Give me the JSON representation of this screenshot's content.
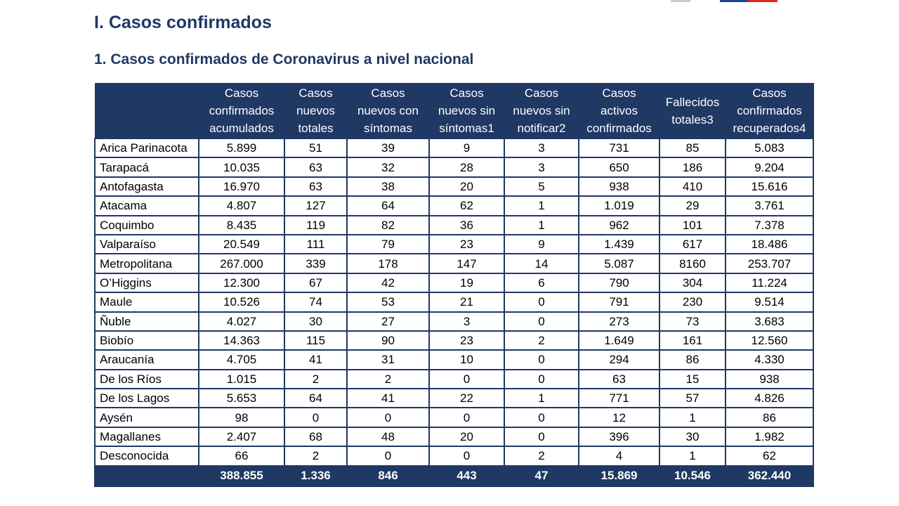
{
  "section_title": "I. Casos confirmados",
  "subsection_title": "1. Casos confirmados de Coronavirus a nivel nacional",
  "columns": [
    {
      "lines": [
        ""
      ]
    },
    {
      "lines": [
        "Casos",
        "confirmados",
        "acumulados"
      ]
    },
    {
      "lines": [
        "Casos",
        "nuevos",
        "totales"
      ]
    },
    {
      "lines": [
        "Casos",
        "nuevos con",
        "síntomas"
      ]
    },
    {
      "lines": [
        "Casos",
        "nuevos sin",
        "síntomas1"
      ]
    },
    {
      "lines": [
        "Casos",
        "nuevos sin",
        "notificar2"
      ]
    },
    {
      "lines": [
        "Casos",
        "activos",
        "confirmados"
      ]
    },
    {
      "lines": [
        "Fallecidos",
        "totales3"
      ]
    },
    {
      "lines": [
        "Casos",
        "confirmados",
        "recuperados4"
      ]
    }
  ],
  "rows": [
    [
      "Arica Parinacota",
      "5.899",
      "51",
      "39",
      "9",
      "3",
      "731",
      "85",
      "5.083"
    ],
    [
      "Tarapacá",
      "10.035",
      "63",
      "32",
      "28",
      "3",
      "650",
      "186",
      "9.204"
    ],
    [
      "Antofagasta",
      "16.970",
      "63",
      "38",
      "20",
      "5",
      "938",
      "410",
      "15.616"
    ],
    [
      "Atacama",
      "4.807",
      "127",
      "64",
      "62",
      "1",
      "1.019",
      "29",
      "3.761"
    ],
    [
      "Coquimbo",
      "8.435",
      "119",
      "82",
      "36",
      "1",
      "962",
      "101",
      "7.378"
    ],
    [
      "Valparaíso",
      "20.549",
      "111",
      "79",
      "23",
      "9",
      "1.439",
      "617",
      "18.486"
    ],
    [
      "Metropolitana",
      "267.000",
      "339",
      "178",
      "147",
      "14",
      "5.087",
      "8160",
      "253.707"
    ],
    [
      "O’Higgins",
      "12.300",
      "67",
      "42",
      "19",
      "6",
      "790",
      "304",
      "11.224"
    ],
    [
      "Maule",
      "10.526",
      "74",
      "53",
      "21",
      "0",
      "791",
      "230",
      "9.514"
    ],
    [
      "Ñuble",
      "4.027",
      "30",
      "27",
      "3",
      "0",
      "273",
      "73",
      "3.683"
    ],
    [
      "Biobío",
      "14.363",
      "115",
      "90",
      "23",
      "2",
      "1.649",
      "161",
      "12.560"
    ],
    [
      "Araucanía",
      "4.705",
      "41",
      "31",
      "10",
      "0",
      "294",
      "86",
      "4.330"
    ],
    [
      "De los Ríos",
      "1.015",
      "2",
      "2",
      "0",
      "0",
      "63",
      "15",
      "938"
    ],
    [
      "De los Lagos",
      "5.653",
      "64",
      "41",
      "22",
      "1",
      "771",
      "57",
      "4.826"
    ],
    [
      "Aysén",
      "98",
      "0",
      "0",
      "0",
      "0",
      "12",
      "1",
      "86"
    ],
    [
      "Magallanes",
      "2.407",
      "68",
      "48",
      "20",
      "0",
      "396",
      "30",
      "1.982"
    ],
    [
      "Desconocida",
      "66",
      "2",
      "0",
      "0",
      "2",
      "4",
      "1",
      "62"
    ]
  ],
  "totals": [
    "",
    "388.855",
    "1.336",
    "846",
    "443",
    "47",
    "15.869",
    "10.546",
    "362.440"
  ],
  "colors": {
    "header_bg": "#1f3864",
    "title": "#1f3864"
  }
}
